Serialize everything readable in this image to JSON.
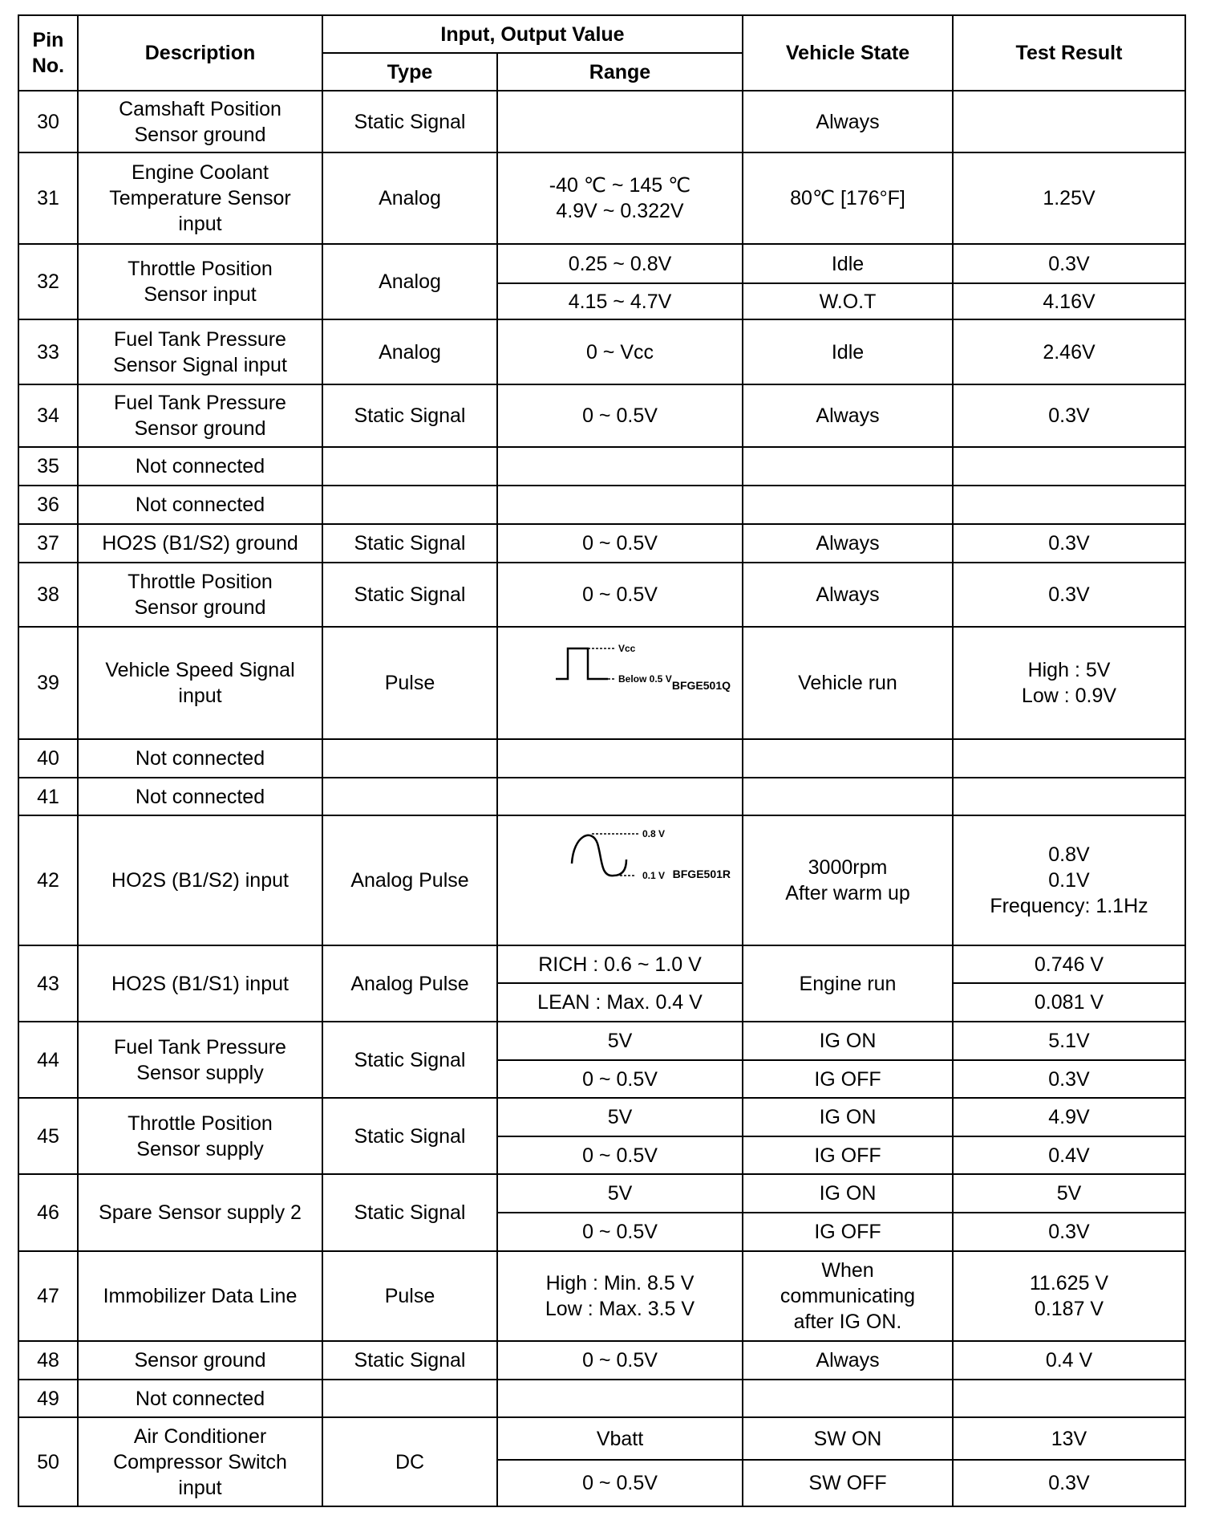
{
  "header": {
    "pin": "Pin\nNo.",
    "description": "Description",
    "io_group": "Input, Output Value",
    "type": "Type",
    "range": "Range",
    "vehicle_state": "Vehicle State",
    "test_result": "Test Result"
  },
  "rows": [
    {
      "pin": "30",
      "description": "Camshaft Position\nSensor ground",
      "type": "Static Signal",
      "subs": [
        {
          "range": "",
          "state": "Always",
          "result": ""
        }
      ]
    },
    {
      "pin": "31",
      "description": "Engine Coolant\nTemperature Sensor\ninput",
      "type": "Analog",
      "subs": [
        {
          "range": "-40 ℃ ~ 145 ℃\n4.9V ~ 0.322V",
          "state": "80℃ [176°F]",
          "result": "1.25V"
        }
      ]
    },
    {
      "pin": "32",
      "description": "Throttle Position\nSensor input",
      "type": "Analog",
      "subs": [
        {
          "range": "0.25 ~ 0.8V",
          "state": "Idle",
          "result": "0.3V"
        },
        {
          "range": "4.15 ~ 4.7V",
          "state": "W.O.T",
          "result": "4.16V"
        }
      ]
    },
    {
      "pin": "33",
      "description": "Fuel Tank Pressure\nSensor Signal input",
      "type": "Analog",
      "subs": [
        {
          "range": "0 ~ Vcc",
          "state": "Idle",
          "result": "2.46V"
        }
      ]
    },
    {
      "pin": "34",
      "description": "Fuel Tank Pressure\nSensor ground",
      "type": "Static Signal",
      "subs": [
        {
          "range": "0 ~ 0.5V",
          "state": "Always",
          "result": "0.3V"
        }
      ]
    },
    {
      "pin": "35",
      "description": "Not connected",
      "type": "",
      "subs": [
        {
          "range": "",
          "state": "",
          "result": ""
        }
      ]
    },
    {
      "pin": "36",
      "description": "Not connected",
      "type": "",
      "subs": [
        {
          "range": "",
          "state": "",
          "result": ""
        }
      ]
    },
    {
      "pin": "37",
      "description": "HO2S (B1/S2) ground",
      "type": "Static Signal",
      "subs": [
        {
          "range": "0 ~ 0.5V",
          "state": "Always",
          "result": "0.3V"
        }
      ]
    },
    {
      "pin": "38",
      "description": "Throttle Position\nSensor ground",
      "type": "Static Signal",
      "subs": [
        {
          "range": "0 ~ 0.5V",
          "state": "Always",
          "result": "0.3V"
        }
      ]
    },
    {
      "pin": "39",
      "description": "Vehicle Speed Signal\ninput",
      "type": "Pulse",
      "subs": [
        {
          "range": {
            "figure": "square-pulse",
            "high": "Vcc",
            "low": "Below 0.5 V",
            "code": "BFGE501Q"
          },
          "state": "Vehicle run",
          "result": "High :  5V\nLow :  0.9V"
        }
      ]
    },
    {
      "pin": "40",
      "description": "Not connected",
      "type": "",
      "subs": [
        {
          "range": "",
          "state": "",
          "result": ""
        }
      ]
    },
    {
      "pin": "41",
      "description": "Not connected",
      "type": "",
      "subs": [
        {
          "range": "",
          "state": "",
          "result": ""
        }
      ]
    },
    {
      "pin": "42",
      "description": "HO2S (B1/S2) input",
      "type": "Analog Pulse",
      "subs": [
        {
          "range": {
            "figure": "sine-wave",
            "high": "0.8 V",
            "low": "0.1 V",
            "code": "BFGE501R"
          },
          "state": "3000rpm\nAfter warm up",
          "result": "0.8V\n0.1V\nFrequency: 1.1Hz"
        }
      ]
    },
    {
      "pin": "43",
      "description": "HO2S (B1/S1) input",
      "type": "Analog Pulse",
      "subs": [
        {
          "range": "RICH : 0.6 ~ 1.0 V",
          "state": "Engine run",
          "result": "0.746 V"
        },
        {
          "range": "LEAN : Max. 0.4 V",
          "result": "0.081 V"
        }
      ]
    },
    {
      "pin": "44",
      "description": "Fuel Tank Pressure\nSensor supply",
      "type": "Static Signal",
      "subs": [
        {
          "range": "5V",
          "state": "IG ON",
          "result": "5.1V"
        },
        {
          "range": "0 ~ 0.5V",
          "state": "IG OFF",
          "result": "0.3V"
        }
      ]
    },
    {
      "pin": "45",
      "description": "Throttle Position\nSensor supply",
      "type": "Static Signal",
      "subs": [
        {
          "range": "5V",
          "state": "IG ON",
          "result": "4.9V"
        },
        {
          "range": "0 ~ 0.5V",
          "state": "IG OFF",
          "result": "0.4V"
        }
      ]
    },
    {
      "pin": "46",
      "description": "Spare Sensor supply 2",
      "type": "Static Signal",
      "subs": [
        {
          "range": "5V",
          "state": "IG ON",
          "result": "5V"
        },
        {
          "range": "0 ~ 0.5V",
          "state": "IG OFF",
          "result": "0.3V"
        }
      ]
    },
    {
      "pin": "47",
      "description": "Immobilizer Data Line",
      "type": "Pulse",
      "subs": [
        {
          "range": "High : Min. 8.5 V\nLow : Max. 3.5 V",
          "state": "When\ncommunicating\nafter IG ON.",
          "result": "11.625 V\n0.187 V"
        }
      ]
    },
    {
      "pin": "48",
      "description": "Sensor ground",
      "type": "Static Signal",
      "subs": [
        {
          "range": "0 ~ 0.5V",
          "state": "Always",
          "result": "0.4 V"
        }
      ]
    },
    {
      "pin": "49",
      "description": "Not connected",
      "type": "",
      "subs": [
        {
          "range": "",
          "state": "",
          "result": ""
        }
      ]
    },
    {
      "pin": "50",
      "description": "Air Conditioner\nCompressor Switch\ninput",
      "type": "DC",
      "subs": [
        {
          "range": "Vbatt",
          "state": "SW ON",
          "result": "13V"
        },
        {
          "range": "0 ~ 0.5V",
          "state": "SW OFF",
          "result": "0.3V"
        }
      ]
    }
  ]
}
